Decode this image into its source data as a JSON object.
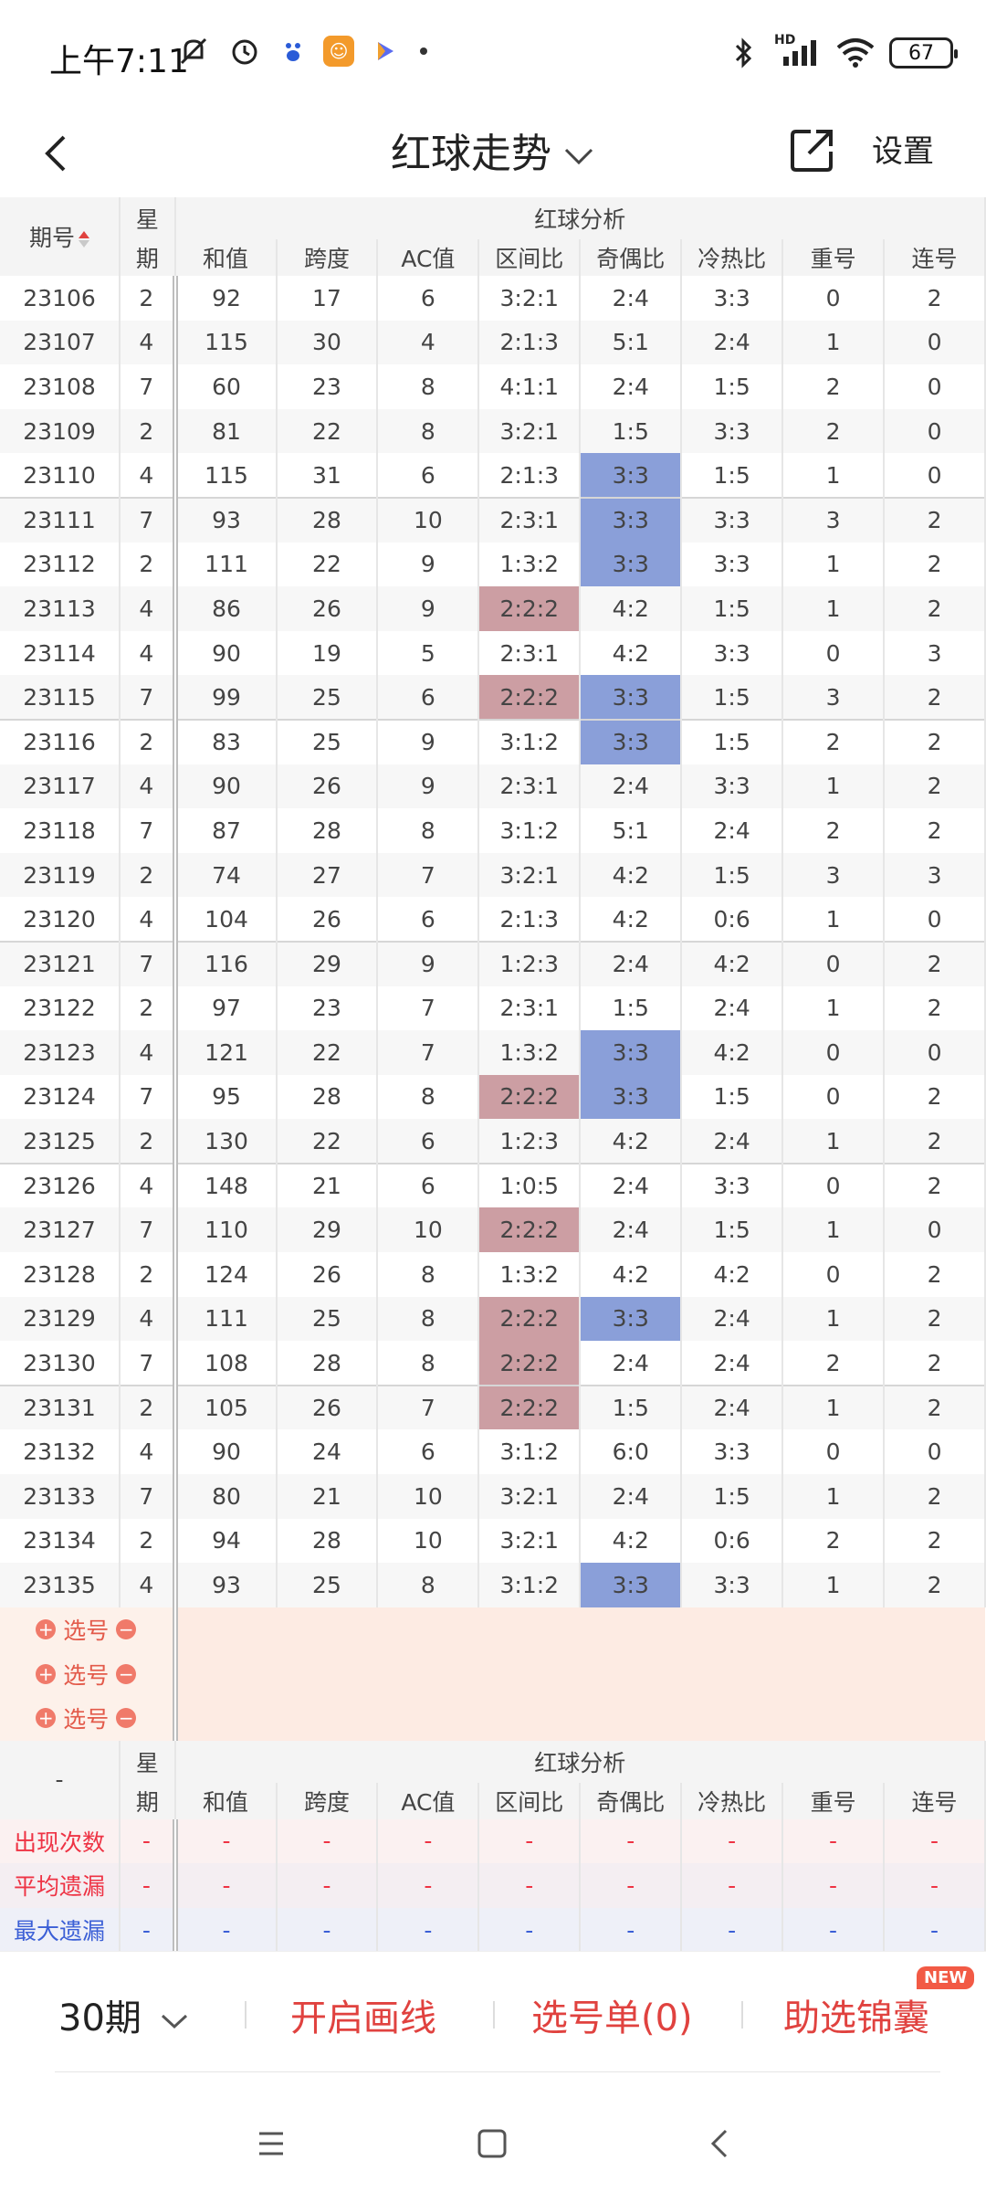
{
  "status_bar": {
    "time": "上午7:11",
    "battery": "67",
    "network": "HD"
  },
  "header": {
    "title": "红球走势",
    "settings": "设置"
  },
  "table": {
    "col_period": "期号",
    "col_week_top": "星",
    "col_week_bottom": "期",
    "group_title": "红球分析",
    "columns": [
      "和值",
      "跨度",
      "AC值",
      "区间比",
      "奇偶比",
      "冷热比",
      "重号",
      "连号"
    ],
    "rows": [
      {
        "period": "23106",
        "week": "2",
        "mark": false,
        "vals": [
          "92",
          "17",
          "6",
          "3:2:1",
          "2:4",
          "3:3",
          "0",
          "2"
        ],
        "hl": [
          "",
          "",
          "",
          "",
          "",
          "",
          "",
          ""
        ]
      },
      {
        "period": "23107",
        "week": "4",
        "mark": true,
        "vals": [
          "115",
          "30",
          "4",
          "2:1:3",
          "5:1",
          "2:4",
          "1",
          "0"
        ],
        "hl": [
          "",
          "",
          "",
          "",
          "",
          "",
          "",
          ""
        ]
      },
      {
        "period": "23108",
        "week": "7",
        "mark": false,
        "vals": [
          "60",
          "23",
          "8",
          "4:1:1",
          "2:4",
          "1:5",
          "2",
          "0"
        ],
        "hl": [
          "",
          "",
          "",
          "",
          "",
          "",
          "",
          ""
        ]
      },
      {
        "period": "23109",
        "week": "2",
        "mark": false,
        "vals": [
          "81",
          "22",
          "8",
          "3:2:1",
          "1:5",
          "3:3",
          "2",
          "0"
        ],
        "hl": [
          "",
          "",
          "",
          "",
          "",
          "",
          "",
          ""
        ]
      },
      {
        "period": "23110",
        "week": "4",
        "mark": true,
        "vals": [
          "115",
          "31",
          "6",
          "2:1:3",
          "3:3",
          "1:5",
          "1",
          "0"
        ],
        "hl": [
          "",
          "",
          "",
          "",
          "b",
          "",
          "",
          ""
        ]
      },
      {
        "period": "23111",
        "week": "7",
        "mark": true,
        "vals": [
          "93",
          "28",
          "10",
          "2:3:1",
          "3:3",
          "3:3",
          "3",
          "2"
        ],
        "hl": [
          "",
          "",
          "",
          "",
          "b",
          "",
          "",
          ""
        ]
      },
      {
        "period": "23112",
        "week": "2",
        "mark": false,
        "vals": [
          "111",
          "22",
          "9",
          "1:3:2",
          "3:3",
          "3:3",
          "1",
          "2"
        ],
        "hl": [
          "",
          "",
          "",
          "",
          "b",
          "",
          "",
          ""
        ]
      },
      {
        "period": "23113",
        "week": "4",
        "mark": false,
        "vals": [
          "86",
          "26",
          "9",
          "2:2:2",
          "4:2",
          "1:5",
          "1",
          "2"
        ],
        "hl": [
          "",
          "",
          "",
          "r",
          "",
          "",
          "",
          ""
        ]
      },
      {
        "period": "23114",
        "week": "4",
        "mark": false,
        "vals": [
          "90",
          "19",
          "5",
          "2:3:1",
          "4:2",
          "3:3",
          "0",
          "3"
        ],
        "hl": [
          "",
          "",
          "",
          "",
          "",
          "",
          "",
          ""
        ]
      },
      {
        "period": "23115",
        "week": "7",
        "mark": false,
        "vals": [
          "99",
          "25",
          "6",
          "2:2:2",
          "3:3",
          "1:5",
          "3",
          "2"
        ],
        "hl": [
          "",
          "",
          "",
          "r",
          "b",
          "",
          "",
          ""
        ]
      },
      {
        "period": "23116",
        "week": "2",
        "mark": false,
        "vals": [
          "83",
          "25",
          "9",
          "3:1:2",
          "3:3",
          "1:5",
          "2",
          "2"
        ],
        "hl": [
          "",
          "",
          "",
          "",
          "b",
          "",
          "",
          ""
        ]
      },
      {
        "period": "23117",
        "week": "4",
        "mark": false,
        "vals": [
          "90",
          "26",
          "9",
          "2:3:1",
          "2:4",
          "3:3",
          "1",
          "2"
        ],
        "hl": [
          "",
          "",
          "",
          "",
          "",
          "",
          "",
          ""
        ]
      },
      {
        "period": "23118",
        "week": "7",
        "mark": false,
        "vals": [
          "87",
          "28",
          "8",
          "3:1:2",
          "5:1",
          "2:4",
          "2",
          "2"
        ],
        "hl": [
          "",
          "",
          "",
          "",
          "",
          "",
          "",
          ""
        ]
      },
      {
        "period": "23119",
        "week": "2",
        "mark": false,
        "vals": [
          "74",
          "27",
          "7",
          "3:2:1",
          "4:2",
          "1:5",
          "3",
          "3"
        ],
        "hl": [
          "",
          "",
          "",
          "",
          "",
          "",
          "",
          ""
        ]
      },
      {
        "period": "23120",
        "week": "4",
        "mark": false,
        "vals": [
          "104",
          "26",
          "6",
          "2:1:3",
          "4:2",
          "0:6",
          "1",
          "0"
        ],
        "hl": [
          "",
          "",
          "",
          "",
          "",
          "",
          "",
          ""
        ]
      },
      {
        "period": "23121",
        "week": "7",
        "mark": false,
        "vals": [
          "116",
          "29",
          "9",
          "1:2:3",
          "2:4",
          "4:2",
          "0",
          "2"
        ],
        "hl": [
          "",
          "",
          "",
          "",
          "",
          "",
          "",
          ""
        ]
      },
      {
        "period": "23122",
        "week": "2",
        "mark": false,
        "vals": [
          "97",
          "23",
          "7",
          "2:3:1",
          "1:5",
          "2:4",
          "1",
          "2"
        ],
        "hl": [
          "",
          "",
          "",
          "",
          "",
          "",
          "",
          ""
        ]
      },
      {
        "period": "23123",
        "week": "4",
        "mark": false,
        "vals": [
          "121",
          "22",
          "7",
          "1:3:2",
          "3:3",
          "4:2",
          "0",
          "0"
        ],
        "hl": [
          "",
          "",
          "",
          "",
          "b",
          "",
          "",
          ""
        ]
      },
      {
        "period": "23124",
        "week": "7",
        "mark": false,
        "vals": [
          "95",
          "28",
          "8",
          "2:2:2",
          "3:3",
          "1:5",
          "0",
          "2"
        ],
        "hl": [
          "",
          "",
          "",
          "r",
          "b",
          "",
          "",
          ""
        ]
      },
      {
        "period": "23125",
        "week": "2",
        "mark": true,
        "vals": [
          "130",
          "22",
          "6",
          "1:2:3",
          "4:2",
          "2:4",
          "1",
          "2"
        ],
        "hl": [
          "",
          "",
          "",
          "",
          "",
          "",
          "",
          ""
        ]
      },
      {
        "period": "23126",
        "week": "4",
        "mark": false,
        "vals": [
          "148",
          "21",
          "6",
          "1:0:5",
          "2:4",
          "3:3",
          "0",
          "2"
        ],
        "hl": [
          "",
          "",
          "",
          "",
          "",
          "",
          "",
          ""
        ]
      },
      {
        "period": "23127",
        "week": "7",
        "mark": false,
        "vals": [
          "110",
          "29",
          "10",
          "2:2:2",
          "2:4",
          "1:5",
          "1",
          "0"
        ],
        "hl": [
          "",
          "",
          "",
          "r",
          "",
          "",
          "",
          ""
        ]
      },
      {
        "period": "23128",
        "week": "2",
        "mark": true,
        "vals": [
          "124",
          "26",
          "8",
          "1:3:2",
          "4:2",
          "4:2",
          "0",
          "2"
        ],
        "hl": [
          "",
          "",
          "",
          "",
          "",
          "",
          "",
          ""
        ]
      },
      {
        "period": "23129",
        "week": "4",
        "mark": true,
        "vals": [
          "111",
          "25",
          "8",
          "2:2:2",
          "3:3",
          "2:4",
          "1",
          "2"
        ],
        "hl": [
          "",
          "",
          "",
          "r",
          "b",
          "",
          "",
          ""
        ]
      },
      {
        "period": "23130",
        "week": "7",
        "mark": false,
        "vals": [
          "108",
          "28",
          "8",
          "2:2:2",
          "2:4",
          "2:4",
          "2",
          "2"
        ],
        "hl": [
          "",
          "",
          "",
          "r",
          "",
          "",
          "",
          ""
        ]
      },
      {
        "period": "23131",
        "week": "2",
        "mark": false,
        "vals": [
          "105",
          "26",
          "7",
          "2:2:2",
          "1:5",
          "2:4",
          "1",
          "2"
        ],
        "hl": [
          "",
          "",
          "",
          "r",
          "",
          "",
          "",
          ""
        ]
      },
      {
        "period": "23132",
        "week": "4",
        "mark": false,
        "vals": [
          "90",
          "24",
          "6",
          "3:1:2",
          "6:0",
          "3:3",
          "0",
          "0"
        ],
        "hl": [
          "",
          "",
          "",
          "",
          "",
          "",
          "",
          ""
        ]
      },
      {
        "period": "23133",
        "week": "7",
        "mark": false,
        "vals": [
          "80",
          "21",
          "10",
          "3:2:1",
          "2:4",
          "1:5",
          "1",
          "2"
        ],
        "hl": [
          "",
          "",
          "",
          "",
          "",
          "",
          "",
          ""
        ]
      },
      {
        "period": "23134",
        "week": "2",
        "mark": true,
        "vals": [
          "94",
          "28",
          "10",
          "3:2:1",
          "4:2",
          "0:6",
          "2",
          "2"
        ],
        "hl": [
          "",
          "",
          "",
          "",
          "",
          "",
          "",
          ""
        ]
      },
      {
        "period": "23135",
        "week": "4",
        "mark": false,
        "vals": [
          "93",
          "25",
          "8",
          "3:1:2",
          "3:3",
          "3:3",
          "1",
          "2"
        ],
        "hl": [
          "",
          "",
          "",
          "",
          "b",
          "",
          "",
          ""
        ]
      }
    ],
    "pick_label": "选号",
    "footer_dash": "-",
    "stats": [
      {
        "label": "出现次数",
        "color": "red"
      },
      {
        "label": "平均遗漏",
        "color": "red"
      },
      {
        "label": "最大遗漏",
        "color": "blue"
      }
    ],
    "stat_value": "-"
  },
  "actions": {
    "period_select": "30期",
    "draw_lines": "开启画线",
    "pick_list": "选号单(0)",
    "tips": "助选锦囊",
    "new_badge": "NEW"
  },
  "colors": {
    "accent": "#e0423f",
    "hl_red": "#cc9ea3",
    "hl_blue": "#8a9fd9"
  }
}
